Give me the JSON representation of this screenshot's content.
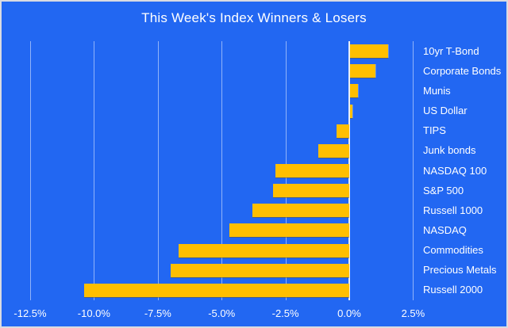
{
  "chart_data": {
    "type": "bar",
    "orientation": "horizontal",
    "title": "This Week's Index Winners & Losers",
    "categories": [
      "10yr T-Bond",
      "Corporate Bonds",
      "Munis",
      "US Dollar",
      "TIPS",
      "Junk bonds",
      "NASDAQ 100",
      "S&P 500",
      "Russell 1000",
      "NASDAQ",
      "Commodities",
      "Precious Metals",
      "Russell 2000"
    ],
    "values": [
      1.5,
      1.0,
      0.3,
      0.1,
      -0.5,
      -1.2,
      -2.9,
      -3.0,
      -3.8,
      -4.7,
      -6.7,
      -7.0,
      -10.4
    ],
    "value_unit": "%",
    "x_tick_values": [
      -12.5,
      -10.0,
      -7.5,
      -5.0,
      -2.5,
      0.0,
      2.5
    ],
    "x_tick_labels": [
      "-12.5%",
      "-10.0%",
      "-7.5%",
      "-5.0%",
      "-2.5%",
      "0.0%",
      "2.5%"
    ],
    "xlim": [
      -13.6,
      2.5
    ],
    "grid": true,
    "legend": "none",
    "category_labels_position": "right",
    "colors": {
      "background": "#2267F2",
      "bar": "#FFBF00",
      "text": "#FFFFFF",
      "gridline": "rgba(255,255,255,0.5)",
      "zero_line": "#E8EEF7",
      "frame_border": "#D9DBE2"
    }
  }
}
